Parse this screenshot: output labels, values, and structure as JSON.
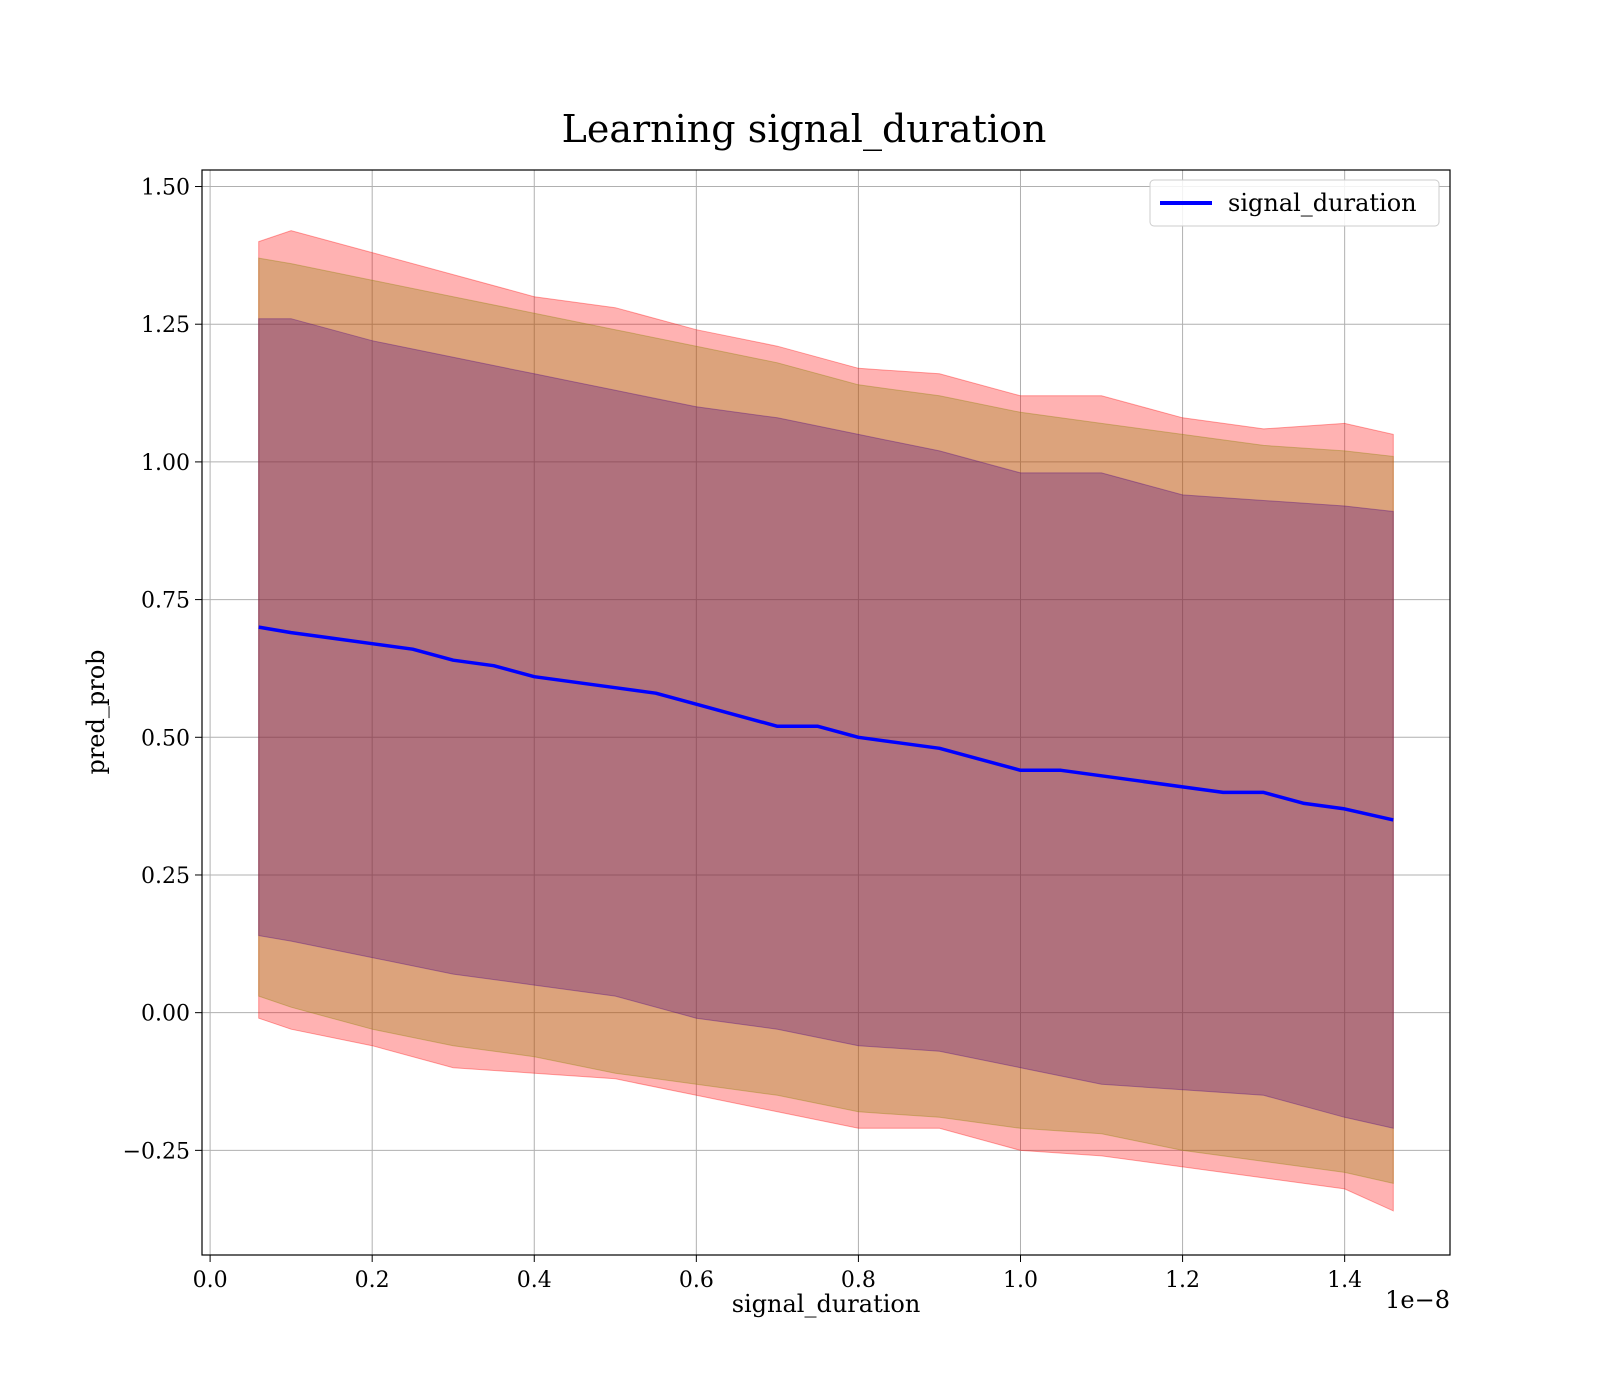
{
  "chart_data": {
    "type": "line",
    "title": "Learning signal_duration",
    "xlabel": "signal_duration",
    "ylabel": "pred_prob",
    "x_offset_text": "1e−8",
    "xlim": [
      -0.01,
      1.53
    ],
    "ylim": [
      -0.44,
      1.53
    ],
    "x_ticks": [
      0.0,
      0.2,
      0.4,
      0.6,
      0.8,
      1.0,
      1.2,
      1.4
    ],
    "x_tick_labels": [
      "0.0",
      "0.2",
      "0.4",
      "0.6",
      "0.8",
      "1.0",
      "1.2",
      "1.4"
    ],
    "y_ticks": [
      -0.25,
      0.0,
      0.25,
      0.5,
      0.75,
      1.0,
      1.25,
      1.5
    ],
    "y_tick_labels": [
      "−0.25",
      "0.00",
      "0.25",
      "0.50",
      "0.75",
      "1.00",
      "1.25",
      "1.50"
    ],
    "grid": true,
    "legend": {
      "position": "top-right",
      "entries": [
        "signal_duration"
      ]
    },
    "colors": {
      "line": "#0000ff",
      "band_outer": "#ff0000",
      "band_middle": "#8b8000",
      "band_inner": "#4b0082",
      "grid": "#b0b0b0"
    },
    "series": [
      {
        "name": "signal_duration",
        "x": [
          0.06,
          0.1,
          0.15,
          0.2,
          0.25,
          0.3,
          0.35,
          0.4,
          0.45,
          0.5,
          0.55,
          0.6,
          0.65,
          0.7,
          0.75,
          0.8,
          0.85,
          0.9,
          0.95,
          1.0,
          1.05,
          1.1,
          1.15,
          1.2,
          1.25,
          1.3,
          1.35,
          1.4,
          1.46
        ],
        "y": [
          0.7,
          0.69,
          0.68,
          0.67,
          0.66,
          0.64,
          0.63,
          0.61,
          0.6,
          0.59,
          0.58,
          0.56,
          0.54,
          0.52,
          0.52,
          0.5,
          0.49,
          0.48,
          0.46,
          0.44,
          0.44,
          0.43,
          0.42,
          0.41,
          0.4,
          0.4,
          0.38,
          0.37,
          0.35
        ]
      }
    ],
    "bands": [
      {
        "level": "outer",
        "x": [
          0.06,
          0.1,
          0.2,
          0.3,
          0.4,
          0.5,
          0.6,
          0.7,
          0.8,
          0.9,
          1.0,
          1.1,
          1.2,
          1.3,
          1.4,
          1.46
        ],
        "upper": [
          1.4,
          1.42,
          1.38,
          1.34,
          1.3,
          1.28,
          1.24,
          1.21,
          1.17,
          1.16,
          1.12,
          1.12,
          1.08,
          1.06,
          1.07,
          1.05
        ],
        "lower": [
          -0.01,
          -0.03,
          -0.06,
          -0.1,
          -0.11,
          -0.12,
          -0.15,
          -0.18,
          -0.21,
          -0.21,
          -0.25,
          -0.26,
          -0.28,
          -0.3,
          -0.32,
          -0.36
        ]
      },
      {
        "level": "middle",
        "x": [
          0.06,
          0.1,
          0.2,
          0.3,
          0.4,
          0.5,
          0.6,
          0.7,
          0.8,
          0.9,
          1.0,
          1.1,
          1.2,
          1.3,
          1.4,
          1.46
        ],
        "upper": [
          1.37,
          1.36,
          1.33,
          1.3,
          1.27,
          1.24,
          1.21,
          1.18,
          1.14,
          1.12,
          1.09,
          1.07,
          1.05,
          1.03,
          1.02,
          1.01
        ],
        "lower": [
          0.03,
          0.01,
          -0.03,
          -0.06,
          -0.08,
          -0.11,
          -0.13,
          -0.15,
          -0.18,
          -0.19,
          -0.21,
          -0.22,
          -0.25,
          -0.27,
          -0.29,
          -0.31
        ]
      },
      {
        "level": "inner",
        "x": [
          0.06,
          0.1,
          0.2,
          0.3,
          0.4,
          0.5,
          0.6,
          0.7,
          0.8,
          0.9,
          1.0,
          1.1,
          1.2,
          1.3,
          1.4,
          1.46
        ],
        "upper": [
          1.26,
          1.26,
          1.22,
          1.19,
          1.16,
          1.13,
          1.1,
          1.08,
          1.05,
          1.02,
          0.98,
          0.98,
          0.94,
          0.93,
          0.92,
          0.91
        ],
        "lower": [
          0.14,
          0.13,
          0.1,
          0.07,
          0.05,
          0.03,
          -0.01,
          -0.03,
          -0.06,
          -0.07,
          -0.1,
          -0.13,
          -0.14,
          -0.15,
          -0.19,
          -0.21
        ]
      }
    ]
  }
}
